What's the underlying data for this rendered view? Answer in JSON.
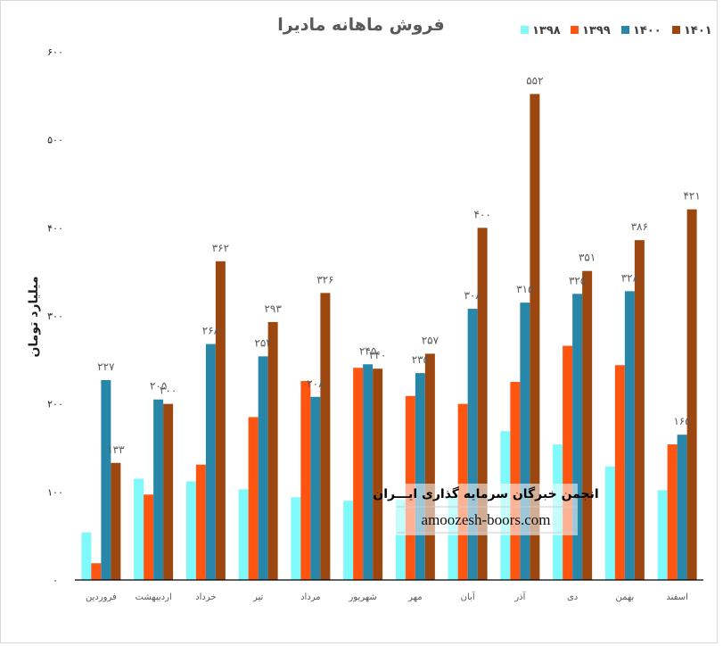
{
  "chart_data": {
    "type": "bar",
    "title": "فروش ماهانه مادیرا",
    "ylabel": "میلیارد تومان",
    "xlabel": "",
    "ylim": [
      0,
      600
    ],
    "yticks": [
      0,
      100,
      200,
      300,
      400,
      500,
      600
    ],
    "ytick_labels": [
      "۰",
      "۱۰۰",
      "۲۰۰",
      "۳۰۰",
      "۴۰۰",
      "۵۰۰",
      "۶۰۰"
    ],
    "legend_position": "top-right",
    "grid": false,
    "categories": [
      "فروردین",
      "اردیبهشت",
      "خرداد",
      "تیر",
      "مرداد",
      "شهریور",
      "مهر",
      "آبان",
      "آذر",
      "دی",
      "بهمن",
      "اسفند"
    ],
    "series": [
      {
        "name": "۱۳۹۸",
        "color": "#7FF9F9",
        "values": [
          54,
          115,
          112,
          103,
          94,
          90,
          91,
          94,
          169,
          154,
          129,
          102
        ],
        "labels": null
      },
      {
        "name": "۱۳۹۹",
        "color": "#FF5511",
        "values": [
          19,
          97,
          131,
          185,
          226,
          241,
          209,
          200,
          225,
          266,
          244,
          154
        ],
        "labels": null
      },
      {
        "name": "۱۴۰۰",
        "color": "#2886A8",
        "values": [
          227,
          205,
          268,
          254,
          208,
          245,
          235,
          308,
          315,
          325,
          328,
          165
        ],
        "labels": [
          "۲۲۷",
          "۲۰۵",
          "۲۶۸",
          "۲۵۴",
          "۲۰۸",
          "۲۴۵",
          "۲۳۵",
          "۳۰۸",
          "۳۱۵",
          "۳۲۵",
          "۳۲۸",
          "۱۶۵"
        ]
      },
      {
        "name": "۱۴۰۱",
        "color": "#9C4710",
        "values": [
          133,
          200,
          362,
          293,
          326,
          240,
          257,
          400,
          552,
          351,
          386,
          421
        ],
        "labels": [
          "۱۳۳",
          "۲۰۰",
          "۳۶۲",
          "۲۹۳",
          "۳۲۶",
          "۲۴۰",
          "۲۵۷",
          "۴۰۰",
          "۵۵۲",
          "۳۵۱",
          "۳۸۶",
          "۴۲۱"
        ]
      }
    ]
  },
  "watermark": {
    "line1": "انجمن خبرگان سرمایه گذاری ایـــران",
    "line2": "amoozesh-boors.com"
  }
}
